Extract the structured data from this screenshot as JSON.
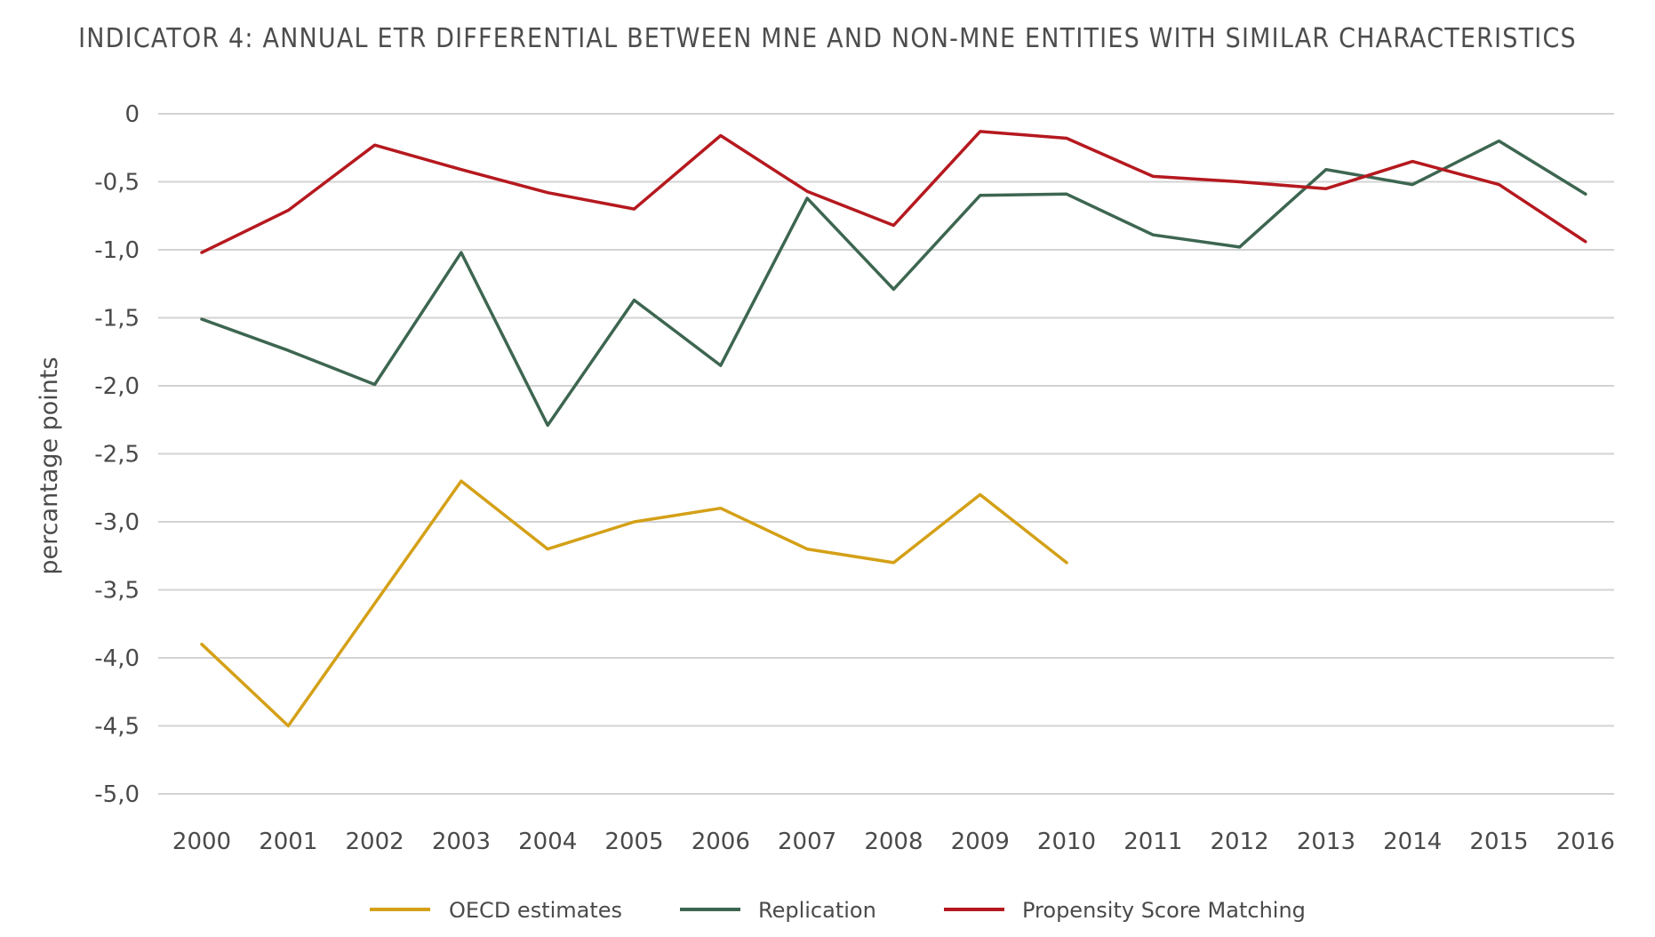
{
  "chart_data": {
    "type": "line",
    "title": "INDICATOR 4: ANNUAL ETR DIFFERENTIAL BETWEEN MNE AND NON-MNE ENTITIES WITH SIMILAR CHARACTERISTICS",
    "xlabel": "",
    "ylabel": "percantage points",
    "categories": [
      "2000",
      "2001",
      "2002",
      "2003",
      "2004",
      "2005",
      "2006",
      "2007",
      "2008",
      "2009",
      "2010",
      "2011",
      "2012",
      "2013",
      "2014",
      "2015",
      "2016"
    ],
    "ylim": [
      -5.0,
      0
    ],
    "yticks": [
      0,
      -0.5,
      -1.0,
      -1.5,
      -2.0,
      -2.5,
      -3.0,
      -3.5,
      -4.0,
      -4.5,
      -5.0
    ],
    "ytick_labels": [
      "0",
      "-0,5",
      "-1,0",
      "-1,5",
      "-2,0",
      "-2,5",
      "-3,0",
      "-3,5",
      "-4,0",
      "-4,5",
      "-5,0"
    ],
    "grid": true,
    "legend_position": "bottom",
    "series": [
      {
        "name": "OECD estimates",
        "color": "#d4a017",
        "values": [
          -3.9,
          -4.5,
          -3.6,
          -2.7,
          -3.2,
          -3.0,
          -2.9,
          -3.2,
          -3.3,
          -2.8,
          -3.3,
          null,
          null,
          null,
          null,
          null,
          null
        ]
      },
      {
        "name": "Replication",
        "color": "#3d6651",
        "values": [
          -1.51,
          -1.74,
          -1.99,
          -1.02,
          -2.29,
          -1.37,
          -1.85,
          -0.62,
          -1.29,
          -0.6,
          -0.59,
          -0.89,
          -0.98,
          -0.41,
          -0.52,
          -0.2,
          -0.59
        ]
      },
      {
        "name": "Propensity Score Matching",
        "color": "#b5191f",
        "values": [
          -1.02,
          -0.71,
          -0.23,
          -0.41,
          -0.58,
          -0.7,
          -0.16,
          -0.57,
          -0.82,
          -0.13,
          -0.18,
          -0.46,
          -0.5,
          -0.55,
          -0.35,
          -0.52,
          -0.94
        ]
      }
    ]
  }
}
